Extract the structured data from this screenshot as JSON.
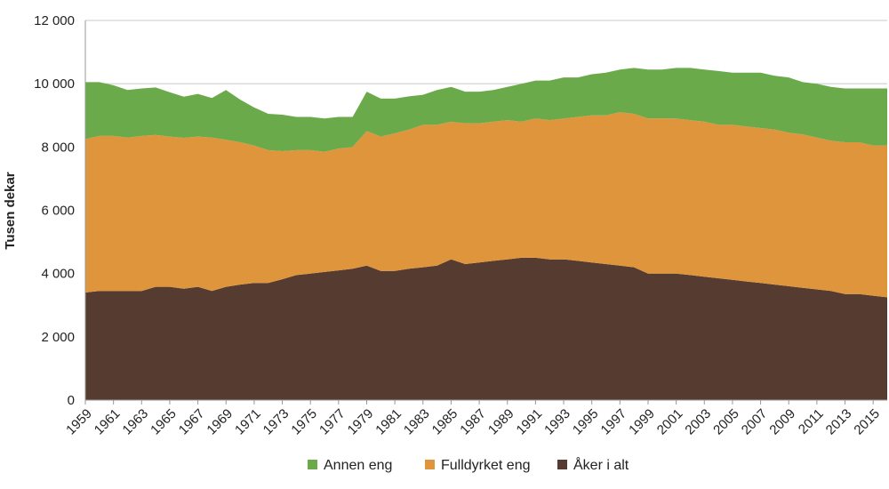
{
  "chart_data": {
    "type": "area",
    "stacked": true,
    "ylabel": "Tusen dekar",
    "ylim": [
      0,
      12000
    ],
    "yticks": [
      0,
      2000,
      4000,
      6000,
      8000,
      10000,
      12000
    ],
    "ytick_labels": [
      "0",
      "2 000",
      "4 000",
      "6 000",
      "8 000",
      "10 000",
      "12 000"
    ],
    "xlim": [
      1959,
      2016
    ],
    "xtick_labels": [
      "1959",
      "1961",
      "1963",
      "1965",
      "1967",
      "1969",
      "1971",
      "1973",
      "1975",
      "1977",
      "1979",
      "1981",
      "1983",
      "1985",
      "1987",
      "1989",
      "1991",
      "1993",
      "1995",
      "1997",
      "1999",
      "2001",
      "2003",
      "2005",
      "2007",
      "2009",
      "2011",
      "2013",
      "2015"
    ],
    "grid": "horizontal",
    "legend_position": "bottom",
    "x": [
      1959,
      1960,
      1961,
      1962,
      1963,
      1964,
      1965,
      1966,
      1967,
      1968,
      1969,
      1970,
      1971,
      1972,
      1973,
      1974,
      1975,
      1976,
      1977,
      1978,
      1979,
      1980,
      1981,
      1982,
      1983,
      1984,
      1985,
      1986,
      1987,
      1988,
      1989,
      1990,
      1991,
      1992,
      1993,
      1994,
      1995,
      1996,
      1997,
      1998,
      1999,
      2000,
      2001,
      2002,
      2003,
      2004,
      2005,
      2006,
      2007,
      2008,
      2009,
      2010,
      2011,
      2012,
      2013,
      2014,
      2015,
      2016
    ],
    "series": [
      {
        "name": "Åker i alt",
        "color": "#563b31",
        "values": [
          3400,
          3450,
          3450,
          3450,
          3450,
          3580,
          3580,
          3520,
          3580,
          3450,
          3580,
          3650,
          3700,
          3700,
          3820,
          3950,
          4000,
          4050,
          4100,
          4150,
          4250,
          4080,
          4080,
          4150,
          4200,
          4250,
          4450,
          4300,
          4350,
          4400,
          4450,
          4500,
          4500,
          4450,
          4450,
          4400,
          4350,
          4300,
          4250,
          4200,
          4000,
          4000,
          4000,
          3950,
          3900,
          3850,
          3800,
          3750,
          3700,
          3650,
          3600,
          3550,
          3500,
          3450,
          3350,
          3350,
          3300,
          3250
        ]
      },
      {
        "name": "Fulldyrket eng",
        "color": "#df953c",
        "values": [
          4850,
          4900,
          4900,
          4850,
          4900,
          4800,
          4750,
          4770,
          4750,
          4850,
          4650,
          4500,
          4350,
          4200,
          4050,
          3950,
          3900,
          3800,
          3850,
          3850,
          4250,
          4250,
          4350,
          4400,
          4500,
          4450,
          4350,
          4450,
          4400,
          4400,
          4400,
          4300,
          4400,
          4400,
          4450,
          4550,
          4650,
          4700,
          4850,
          4850,
          4900,
          4900,
          4900,
          4900,
          4900,
          4850,
          4900,
          4900,
          4900,
          4900,
          4850,
          4850,
          4800,
          4750,
          4800,
          4800,
          4750,
          4800
        ]
      },
      {
        "name": "Annen eng",
        "color": "#6aaa4b",
        "values": [
          1800,
          1700,
          1600,
          1500,
          1500,
          1500,
          1400,
          1300,
          1350,
          1250,
          1570,
          1350,
          1200,
          1150,
          1150,
          1050,
          1050,
          1050,
          1000,
          950,
          1250,
          1200,
          1100,
          1050,
          950,
          1100,
          1100,
          1000,
          1000,
          1000,
          1050,
          1200,
          1200,
          1250,
          1300,
          1250,
          1300,
          1350,
          1350,
          1450,
          1550,
          1550,
          1600,
          1650,
          1650,
          1700,
          1650,
          1700,
          1750,
          1700,
          1750,
          1650,
          1700,
          1700,
          1700,
          1700,
          1800,
          1800
        ]
      }
    ],
    "legend_order": [
      "Annen eng",
      "Fulldyrket eng",
      "Åker i alt"
    ]
  }
}
